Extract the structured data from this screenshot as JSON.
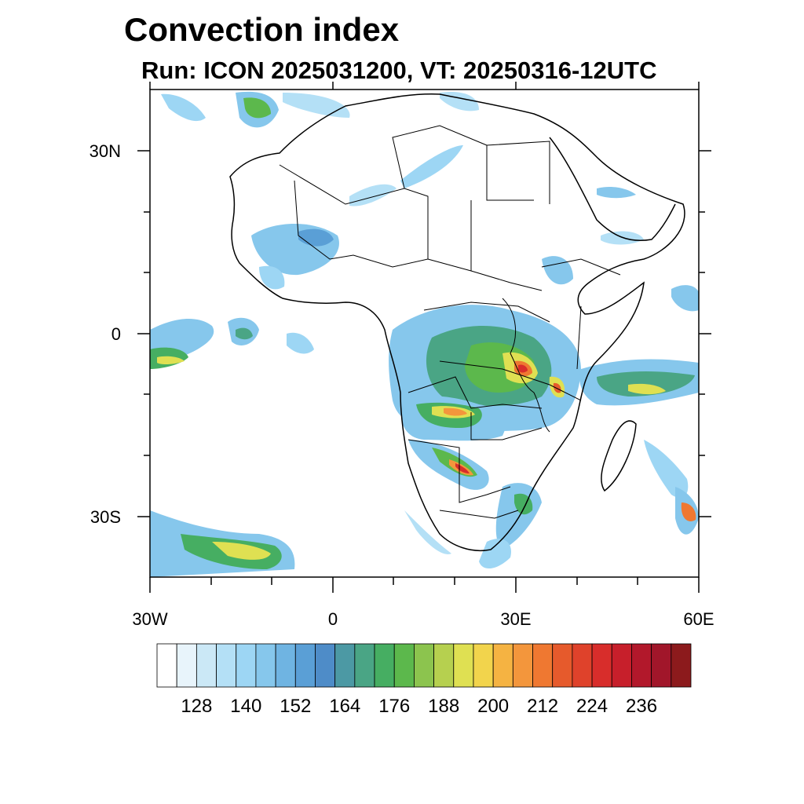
{
  "title": "Convection index",
  "subtitle": "Run: ICON 2025031200,  VT: 20250316-12UTC",
  "map": {
    "region": "Africa",
    "lon_range": [
      -30,
      60
    ],
    "lat_range": [
      -40,
      40
    ],
    "lat_labels": [
      "30N",
      "0",
      "30S"
    ],
    "lon_labels": [
      "30W",
      "0",
      "30E",
      "60E"
    ]
  },
  "colorbar": {
    "colors": [
      "#ffffff",
      "#e8f4fb",
      "#cbe8f6",
      "#b4e0f6",
      "#9dd6f4",
      "#86c7ec",
      "#6fb4e2",
      "#5a9fd6",
      "#4e8cc8",
      "#4c99a4",
      "#4aa585",
      "#46ae62",
      "#5cb84c",
      "#8cc44e",
      "#b6d04f",
      "#dfe052",
      "#f2d44c",
      "#f5b342",
      "#f3963c",
      "#ef7831",
      "#e65a2c",
      "#df422b",
      "#d82d2b",
      "#c71f2b",
      "#b2182b",
      "#a1162a",
      "#8c1a1c"
    ],
    "tick_labels": [
      "128",
      "140",
      "152",
      "164",
      "176",
      "188",
      "200",
      "212",
      "224",
      "236"
    ]
  }
}
